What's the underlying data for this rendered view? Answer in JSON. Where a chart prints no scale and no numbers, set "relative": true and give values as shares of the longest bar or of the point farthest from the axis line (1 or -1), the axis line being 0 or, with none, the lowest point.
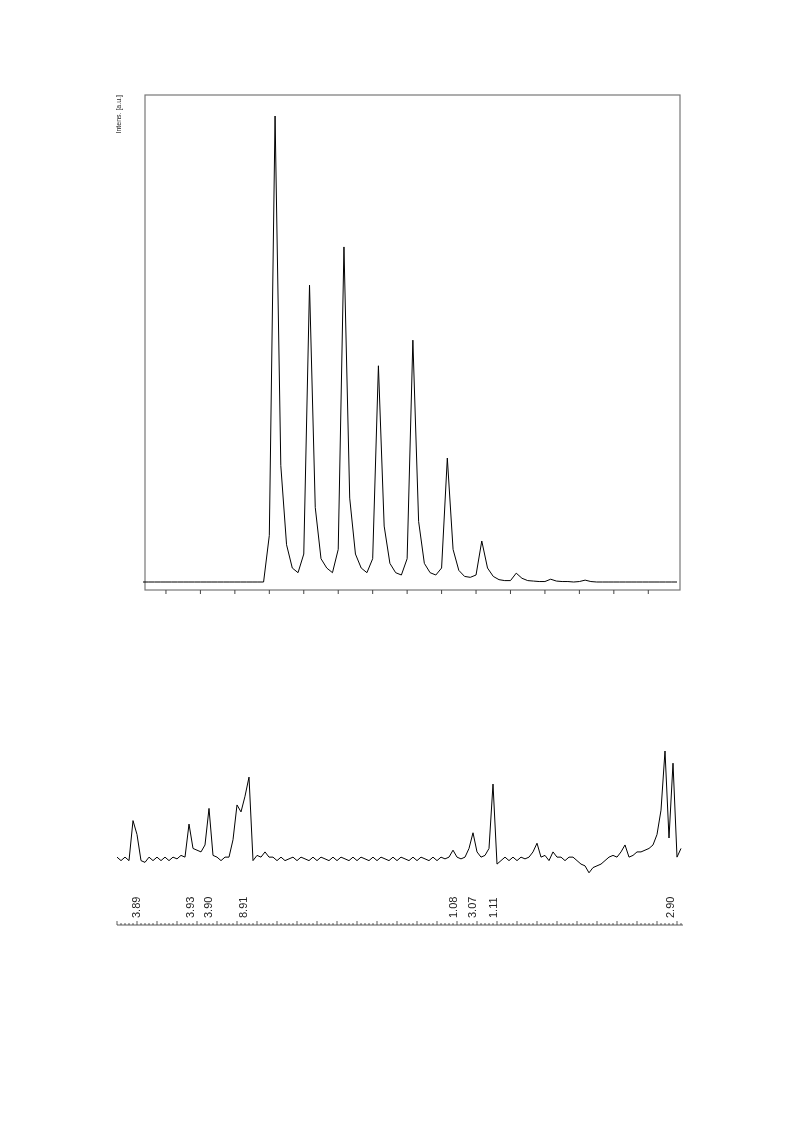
{
  "chart_data": [
    {
      "type": "line",
      "ylabel": "Intens. [a.u.]",
      "relative": true,
      "color": "#000000",
      "categories": [
        null,
        null,
        null,
        null,
        null,
        null,
        null,
        null,
        null,
        null,
        null,
        null,
        null,
        null,
        null,
        null,
        null,
        null,
        null,
        null,
        null,
        null,
        null,
        null,
        null,
        null,
        null,
        null,
        null,
        null,
        null,
        null,
        null,
        null,
        null,
        null,
        null,
        null,
        null,
        null,
        null,
        null,
        null,
        null,
        null,
        null,
        null,
        null,
        null,
        null,
        null,
        null,
        null,
        null,
        null,
        null,
        null,
        null,
        null,
        null,
        null,
        null,
        null,
        null,
        null,
        null,
        null,
        null,
        null,
        null,
        null,
        null,
        null,
        null,
        null,
        null,
        null,
        null,
        null,
        null,
        null,
        null,
        null,
        null,
        null,
        null,
        null,
        null,
        null,
        null,
        null,
        null,
        null,
        null
      ],
      "values": [
        0,
        0,
        0,
        0,
        0,
        0,
        0,
        0,
        0,
        0,
        0,
        0,
        0,
        0,
        0,
        0,
        0,
        0,
        0,
        0,
        0,
        0,
        0.1,
        1,
        0.25,
        0.08,
        0.03,
        0.02,
        0.06,
        0.637,
        0.16,
        0.05,
        0.03,
        0.02,
        0.07,
        0.719,
        0.18,
        0.06,
        0.03,
        0.02,
        0.05,
        0.464,
        0.12,
        0.04,
        0.02,
        0.015,
        0.05,
        0.519,
        0.13,
        0.04,
        0.02,
        0.015,
        0.03,
        0.266,
        0.07,
        0.025,
        0.012,
        0.01,
        0.015,
        0.088,
        0.03,
        0.012,
        0.005,
        0.003,
        0.003,
        0.019,
        0.008,
        0.003,
        0.002,
        0.001,
        0.001,
        0.006,
        0.002,
        0.001,
        0.001,
        0,
        0.001,
        0.004,
        0.001,
        0,
        0,
        0,
        0,
        0,
        0,
        0,
        0,
        0,
        0,
        0,
        0,
        0,
        0,
        0
      ]
    },
    {
      "type": "line",
      "relative": true,
      "color": "#000000",
      "annotations": [
        "3.89",
        "3.93",
        "3.90",
        "8.91",
        "1.08",
        "3.07",
        "1.11",
        "2.90"
      ],
      "categories": [
        null,
        null,
        null,
        null,
        null,
        null,
        null,
        null,
        null,
        null,
        null,
        null,
        null,
        null,
        null,
        null,
        null,
        null,
        null,
        null,
        null,
        null,
        null,
        null,
        null,
        null,
        null,
        null,
        null,
        null,
        null,
        null,
        null,
        null,
        null,
        null,
        null,
        null,
        null,
        null,
        null,
        null,
        null,
        null,
        null,
        null,
        null,
        null,
        null,
        null,
        null,
        null,
        null,
        null,
        null,
        null,
        null,
        null,
        null,
        null,
        null,
        null,
        null,
        null,
        null,
        null,
        null,
        null,
        null,
        null,
        null,
        null,
        null,
        null,
        null,
        null,
        null,
        null,
        null,
        null,
        null,
        null,
        null,
        null,
        null,
        null,
        null,
        null,
        null,
        null,
        null,
        null,
        null,
        null,
        null,
        null,
        null,
        null,
        null,
        null,
        null,
        null,
        null,
        null,
        null,
        null,
        null,
        null,
        null,
        null,
        null,
        null,
        null,
        null,
        null,
        null,
        null,
        null,
        null,
        null,
        null,
        null,
        null,
        null,
        null,
        null,
        null,
        null,
        null,
        null,
        null,
        null,
        null,
        null,
        null,
        null,
        null,
        null,
        null,
        null,
        null,
        null
      ],
      "values": [
        0.39,
        0.37,
        0.39,
        0.37,
        0.6,
        0.52,
        0.37,
        0.36,
        0.39,
        0.37,
        0.39,
        0.37,
        0.39,
        0.37,
        0.39,
        0.38,
        0.4,
        0.39,
        0.58,
        0.44,
        0.43,
        0.42,
        0.46,
        0.67,
        0.4,
        0.39,
        0.37,
        0.39,
        0.39,
        0.49,
        0.69,
        0.65,
        0.74,
        0.85,
        0.37,
        0.4,
        0.39,
        0.42,
        0.39,
        0.39,
        0.37,
        0.39,
        0.37,
        0.38,
        0.39,
        0.37,
        0.39,
        0.38,
        0.37,
        0.39,
        0.37,
        0.39,
        0.38,
        0.37,
        0.39,
        0.37,
        0.39,
        0.38,
        0.37,
        0.39,
        0.37,
        0.39,
        0.38,
        0.37,
        0.39,
        0.37,
        0.39,
        0.38,
        0.37,
        0.39,
        0.37,
        0.39,
        0.38,
        0.37,
        0.39,
        0.37,
        0.39,
        0.38,
        0.37,
        0.39,
        0.37,
        0.39,
        0.38,
        0.39,
        0.43,
        0.39,
        0.38,
        0.39,
        0.44,
        0.53,
        0.42,
        0.39,
        0.4,
        0.44,
        0.81,
        0.35,
        0.37,
        0.39,
        0.37,
        0.39,
        0.37,
        0.39,
        0.38,
        0.39,
        0.42,
        0.47,
        0.39,
        0.4,
        0.37,
        0.42,
        0.39,
        0.39,
        0.37,
        0.39,
        0.39,
        0.37,
        0.35,
        0.34,
        0.3,
        0.33,
        0.34,
        0.35,
        0.37,
        0.39,
        0.4,
        0.39,
        0.42,
        0.46,
        0.39,
        0.4,
        0.42,
        0.42,
        0.43,
        0.44,
        0.46,
        0.52,
        0.66,
        1,
        0.5,
        0.93,
        0.39,
        0.44
      ]
    }
  ]
}
